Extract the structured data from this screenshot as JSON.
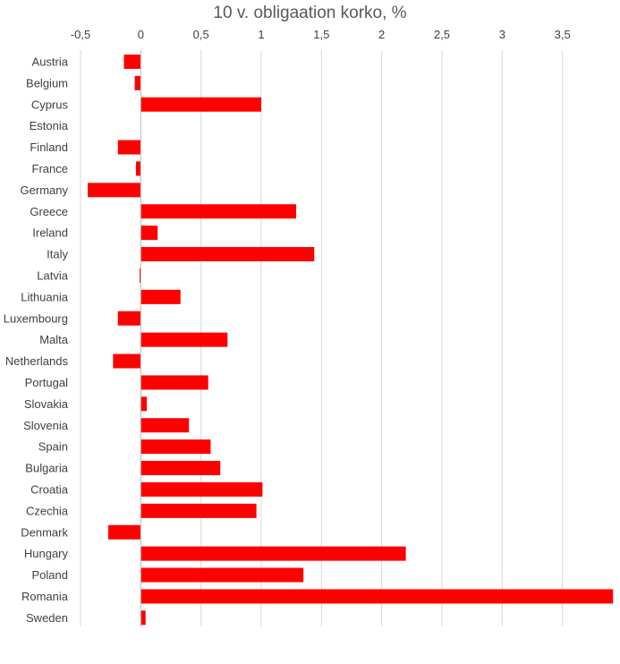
{
  "chart_data": {
    "type": "bar",
    "orientation": "horizontal",
    "title": "10 v. obligaation korko, %",
    "xlabel": "",
    "ylabel": "",
    "xlim": [
      -0.5,
      4.0
    ],
    "x_axis_position": "top",
    "x_ticks": [
      -0.5,
      0,
      0.5,
      1,
      1.5,
      2,
      2.5,
      3,
      3.5
    ],
    "x_tick_labels": [
      "-0,5",
      "0",
      "0,5",
      "1",
      "1,5",
      "2",
      "2,5",
      "3",
      "3,5"
    ],
    "grid": true,
    "legend": "none",
    "bar_color": "#ff0000",
    "grid_color": "#d9d9d9",
    "text_color": "#404040",
    "title_color": "#595959",
    "categories": [
      "Austria",
      "Belgium",
      "Cyprus",
      "Estonia",
      "Finland",
      "France",
      "Germany",
      "Greece",
      "Ireland",
      "Italy",
      "Latvia",
      "Lithuania",
      "Luxembourg",
      "Malta",
      "Netherlands",
      "Portugal",
      "Slovakia",
      "Slovenia",
      "Spain",
      "Bulgaria",
      "Croatia",
      "Czechia",
      "Denmark",
      "Hungary",
      "Poland",
      "Romania",
      "Sweden"
    ],
    "values": [
      -0.14,
      -0.05,
      1.0,
      0.0,
      -0.19,
      -0.04,
      -0.44,
      1.29,
      0.14,
      1.44,
      -0.01,
      0.33,
      -0.19,
      0.72,
      -0.23,
      0.56,
      0.05,
      0.4,
      0.58,
      0.66,
      1.01,
      0.96,
      -0.27,
      2.2,
      1.35,
      3.92,
      0.04
    ]
  }
}
